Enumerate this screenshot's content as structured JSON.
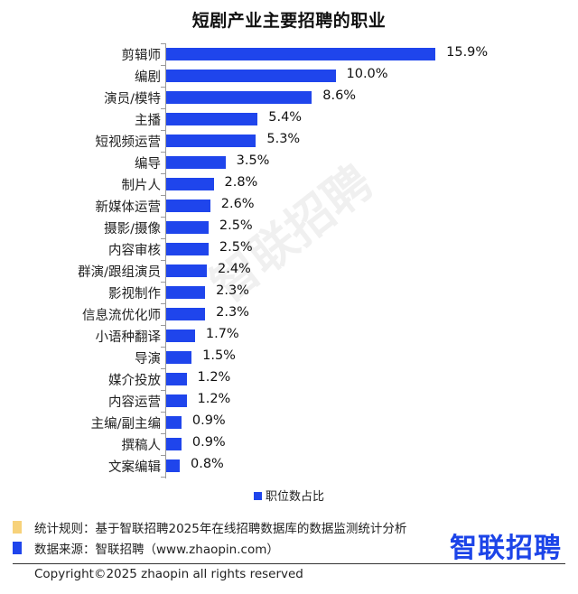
{
  "chart_data": {
    "type": "bar",
    "orientation": "horizontal",
    "title": "短剧产业主要招聘的职业",
    "xlabel": "",
    "ylabel": "",
    "grid": false,
    "legend_position": "bottom",
    "categories": [
      "剪辑师",
      "编剧",
      "演员/模特",
      "主播",
      "短视频运营",
      "编导",
      "制片人",
      "新媒体运营",
      "摄影/摄像",
      "内容审核",
      "群演/跟组演员",
      "影视制作",
      "信息流优化师",
      "小语种翻译",
      "导演",
      "媒介投放",
      "内容运营",
      "主编/副主编",
      "撰稿人",
      "文案编辑"
    ],
    "series": [
      {
        "name": "职位数占比",
        "color": "#1f45ec",
        "values": [
          15.9,
          10.0,
          8.6,
          5.4,
          5.3,
          3.5,
          2.8,
          2.6,
          2.5,
          2.5,
          2.4,
          2.3,
          2.3,
          1.7,
          1.5,
          1.2,
          1.2,
          0.9,
          0.9,
          0.8
        ]
      }
    ],
    "data_labels": [
      "15.9%",
      "10.0%",
      "8.6%",
      "5.4%",
      "5.3%",
      "3.5%",
      "2.8%",
      "2.6%",
      "2.5%",
      "2.5%",
      "2.4%",
      "2.3%",
      "2.3%",
      "1.7%",
      "1.5%",
      "1.2%",
      "1.2%",
      "0.9%",
      "0.9%",
      "0.8%"
    ],
    "unit": "%"
  },
  "title": "短剧产业主要招聘的职业",
  "legend": {
    "label": "职位数占比",
    "color": "#1f45ec"
  },
  "watermark": "智联招聘",
  "notes": [
    {
      "label": "统计规则：基于智联招聘2025年在线招聘数据库的数据监测统计分析",
      "color": "#f7d27a"
    },
    {
      "label": "数据来源：智联招聘（www.zhaopin.com）",
      "color": "#1f45ec"
    }
  ],
  "logo": "智联招聘",
  "copyright": "Copyright©2025 zhaopin all rights reserved"
}
